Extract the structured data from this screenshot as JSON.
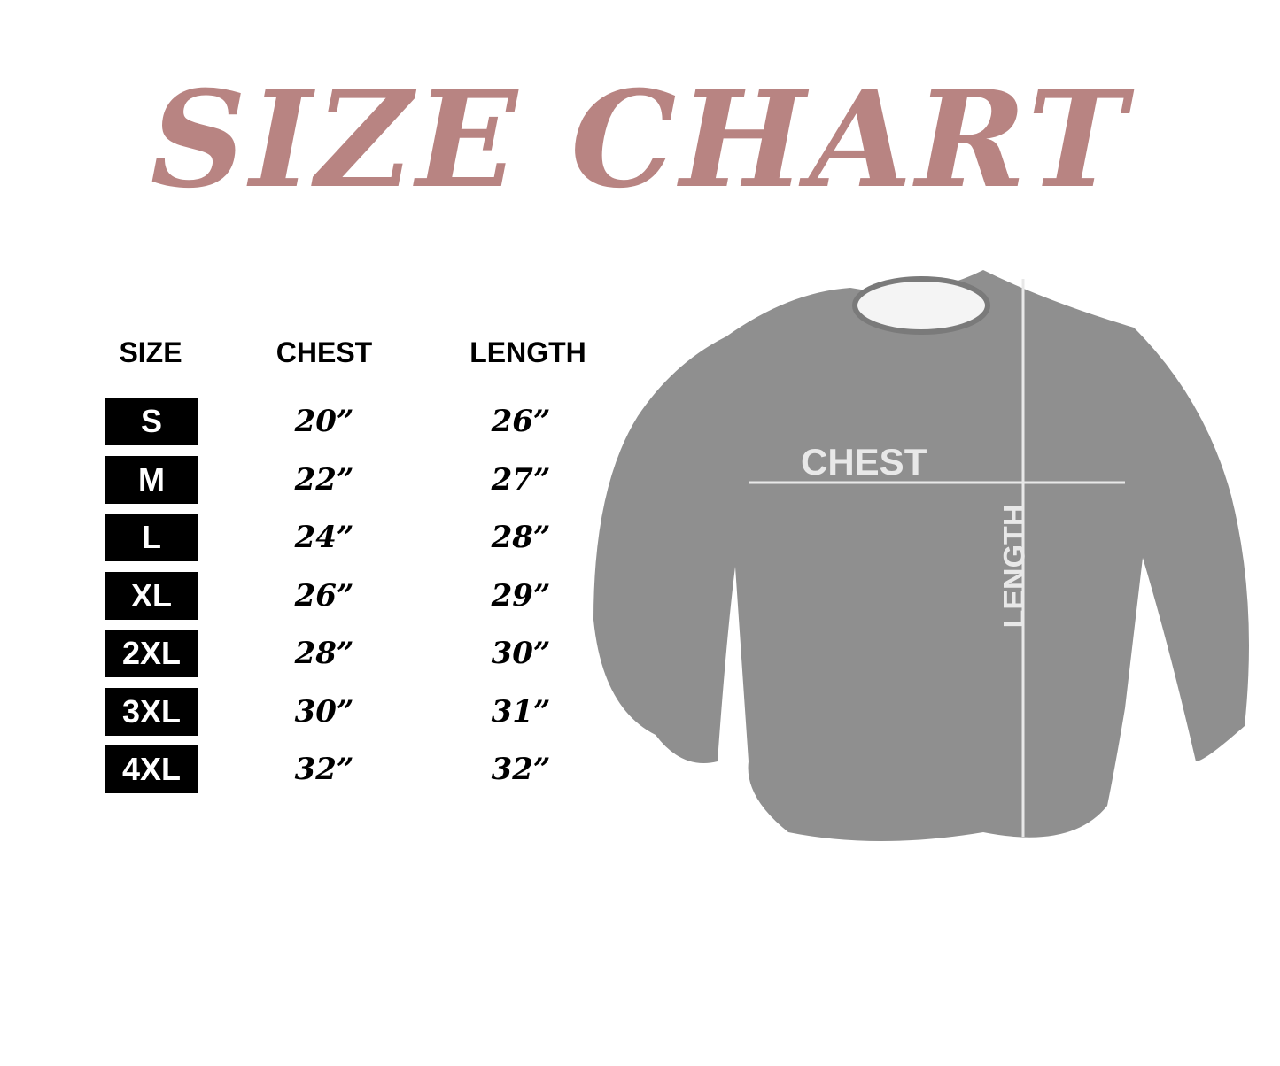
{
  "title": "SIZE CHART",
  "headers": {
    "size": "SIZE",
    "chest": "CHEST",
    "length": "LENGTH"
  },
  "rows": [
    {
      "size": "S",
      "chest": "20”",
      "length": "26”"
    },
    {
      "size": "M",
      "chest": "22”",
      "length": "27”"
    },
    {
      "size": "L",
      "chest": "24”",
      "length": "28”"
    },
    {
      "size": "XL",
      "chest": "26”",
      "length": "29”"
    },
    {
      "size": "2XL",
      "chest": "28”",
      "length": "30”"
    },
    {
      "size": "3XL",
      "chest": "30”",
      "length": "31”"
    },
    {
      "size": "4XL",
      "chest": "32”",
      "length": "32”"
    }
  ],
  "diagram": {
    "chest_label": "CHEST",
    "length_label": "LENGTH"
  },
  "colors": {
    "title": "#b88482",
    "badge": "#000000",
    "shirt": "#8f8f8f"
  }
}
